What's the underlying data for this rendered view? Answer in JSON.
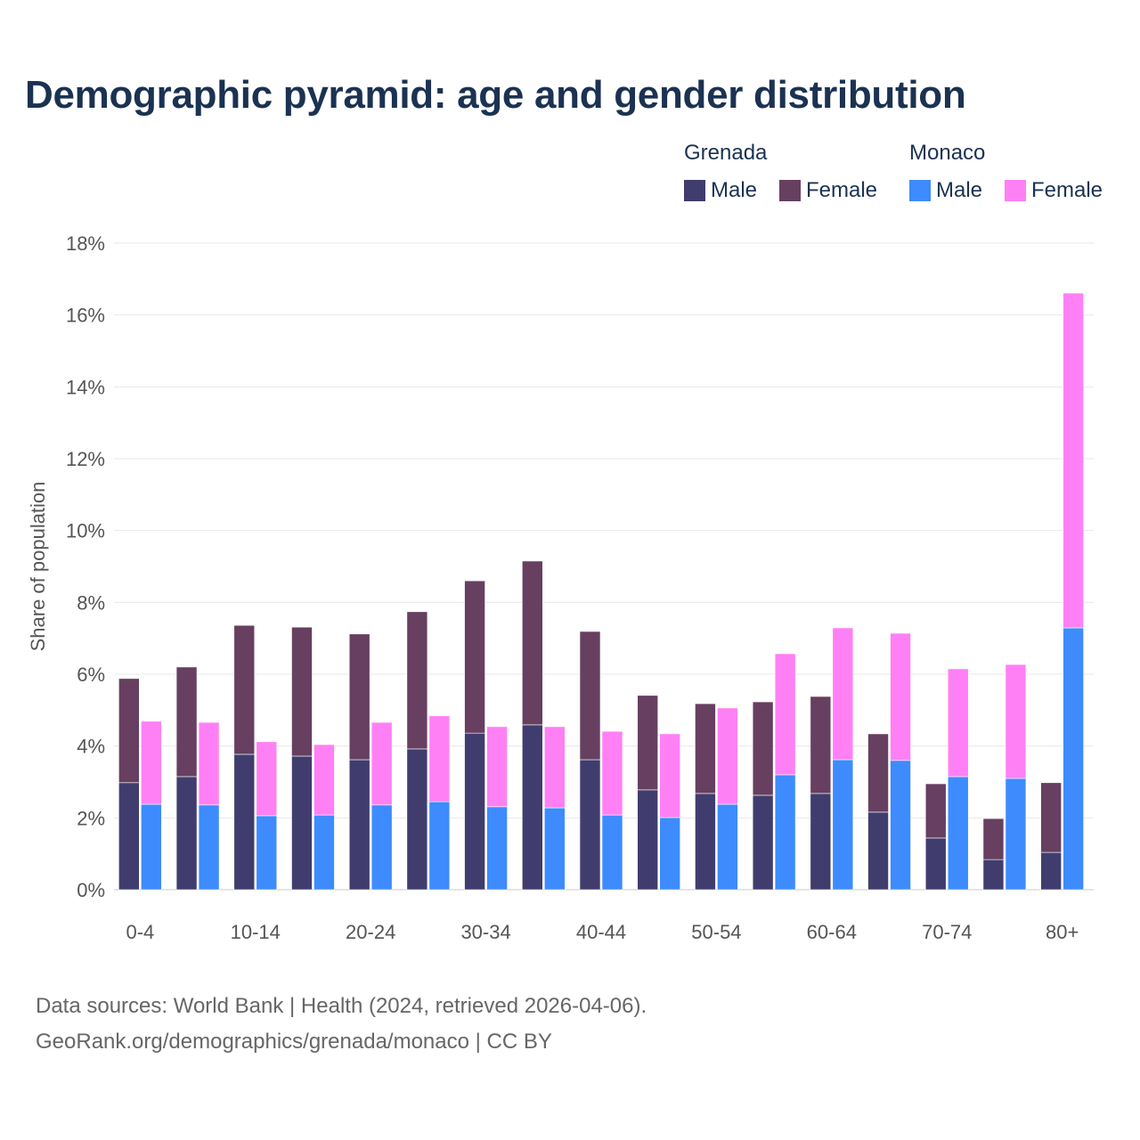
{
  "chart_data": {
    "type": "bar",
    "title": "Demographic pyramid: age and gender distribution",
    "ylabel": "Share of population",
    "xlabel": "",
    "ylim": [
      0,
      18
    ],
    "yticks": [
      0,
      2,
      4,
      6,
      8,
      10,
      12,
      14,
      16,
      18
    ],
    "ytick_labels": [
      "0%",
      "2%",
      "4%",
      "6%",
      "8%",
      "10%",
      "12%",
      "14%",
      "16%",
      "18%"
    ],
    "grid": true,
    "legend_placement": "top-right",
    "stacked": true,
    "categories": [
      "0-4",
      "5-9",
      "10-14",
      "15-19",
      "20-24",
      "25-29",
      "30-34",
      "35-39",
      "40-44",
      "45-49",
      "50-54",
      "55-59",
      "60-64",
      "65-69",
      "70-74",
      "75-79",
      "80+"
    ],
    "xtick_labels_shown": [
      "0-4",
      "10-14",
      "20-24",
      "30-34",
      "40-44",
      "50-54",
      "60-64",
      "70-74",
      "80+"
    ],
    "countries": [
      {
        "name": "Grenada",
        "series": [
          {
            "name": "Male",
            "color": "#403d6e",
            "values": [
              2.98,
              3.15,
              3.77,
              3.72,
              3.62,
              3.92,
              4.36,
              4.59,
              3.62,
              2.78,
              2.68,
              2.63,
              2.68,
              2.16,
              1.44,
              0.84,
              1.04
            ]
          },
          {
            "name": "Female",
            "color": "#673f60",
            "values": [
              2.9,
              3.05,
              3.59,
              3.59,
              3.5,
              3.82,
              4.24,
              4.56,
              3.57,
              2.63,
              2.5,
              2.6,
              2.7,
              2.18,
              1.51,
              1.14,
              1.94
            ]
          }
        ]
      },
      {
        "name": "Monaco",
        "series": [
          {
            "name": "Male",
            "color": "#3d8bfd",
            "values": [
              2.38,
              2.36,
              2.06,
              2.08,
              2.36,
              2.45,
              2.31,
              2.28,
              2.08,
              2.01,
              2.38,
              3.2,
              3.62,
              3.6,
              3.15,
              3.1,
              7.29
            ]
          },
          {
            "name": "Female",
            "color": "#ff80f4",
            "values": [
              2.31,
              2.3,
              2.06,
              1.96,
              2.3,
              2.39,
              2.23,
              2.26,
              2.33,
              2.33,
              2.68,
              3.37,
              3.67,
              3.54,
              3.0,
              3.17,
              9.32
            ]
          }
        ]
      }
    ]
  },
  "footer": {
    "line1": "Data sources: World Bank | Health (2024, retrieved 2026-04-06).",
    "line2": "GeoRank.org/demographics/grenada/monaco | CC BY"
  }
}
